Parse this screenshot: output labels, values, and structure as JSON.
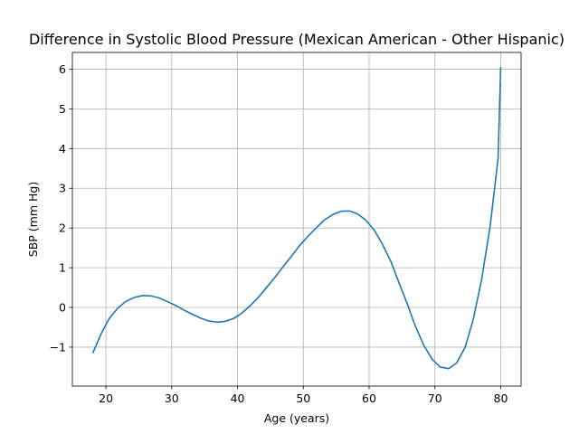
{
  "chart_data": {
    "type": "line",
    "title": "Difference in Systolic Blood Pressure (Mexican American - Other Hispanic)",
    "xlabel": "Age (years)",
    "ylabel": "SBP (mm Hg)",
    "xlim": [
      14.9,
      83.1
    ],
    "ylim": [
      -1.98,
      6.42
    ],
    "xticks": [
      20,
      30,
      40,
      50,
      60,
      70,
      80
    ],
    "yticks": [
      -1,
      0,
      1,
      2,
      3,
      4,
      5,
      6
    ],
    "xtick_labels": [
      "20",
      "30",
      "40",
      "50",
      "60",
      "70",
      "80"
    ],
    "ytick_labels": [
      "−1",
      "0",
      "1",
      "2",
      "3",
      "4",
      "5",
      "6"
    ],
    "grid": true,
    "series": [
      {
        "name": "",
        "color": "#1f77b4",
        "x": [
          18,
          19.3,
          20.5,
          21.8,
          23,
          24.3,
          25.6,
          26.8,
          28.1,
          29.3,
          30.6,
          31.8,
          33.1,
          34.4,
          35.6,
          36.9,
          38.1,
          39.4,
          40.6,
          41.9,
          43.2,
          44.4,
          45.7,
          46.9,
          48.2,
          49.4,
          50.7,
          52,
          53.2,
          54.5,
          55.7,
          57,
          58.2,
          59.5,
          60.8,
          62,
          63.3,
          64.5,
          65.8,
          67,
          68.3,
          69.6,
          70.8,
          72.1,
          73.3,
          74.6,
          75.8,
          77.1,
          78.4,
          79.6,
          80
        ],
        "y": [
          -1.15,
          -0.65,
          -0.28,
          -0.02,
          0.15,
          0.25,
          0.3,
          0.29,
          0.24,
          0.15,
          0.05,
          -0.06,
          -0.17,
          -0.27,
          -0.34,
          -0.37,
          -0.35,
          -0.28,
          -0.15,
          0.04,
          0.26,
          0.5,
          0.76,
          1.02,
          1.29,
          1.55,
          1.79,
          2.01,
          2.2,
          2.34,
          2.42,
          2.43,
          2.36,
          2.2,
          1.94,
          1.6,
          1.16,
          0.64,
          0.09,
          -0.46,
          -0.95,
          -1.31,
          -1.5,
          -1.54,
          -1.4,
          -1.0,
          -0.32,
          0.7,
          2.05,
          3.75,
          6.05
        ]
      }
    ]
  }
}
